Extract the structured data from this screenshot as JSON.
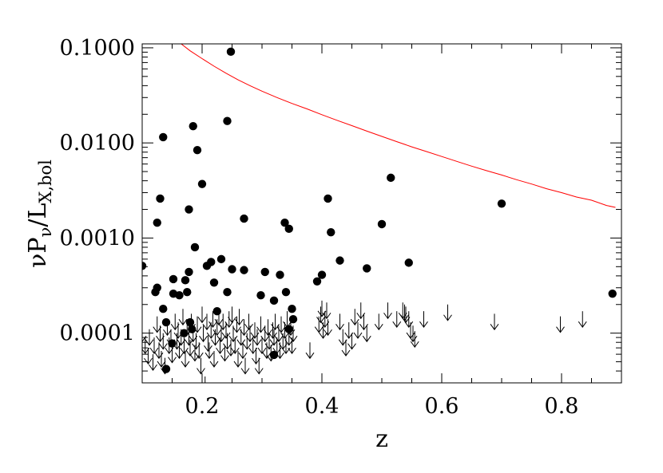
{
  "chart_data": {
    "type": "scatter",
    "title": "",
    "xlabel": "z",
    "ylabel": {
      "parts": [
        {
          "text": "ν",
          "sub": false
        },
        {
          "text": "P",
          "sub": false
        },
        {
          "text": "ν",
          "sub": true
        },
        {
          "text": "/",
          "sub": false
        },
        {
          "text": "L",
          "sub": false
        },
        {
          "text": "X,bol",
          "sub": true
        }
      ]
    },
    "xlim": [
      0.1,
      0.9
    ],
    "ylim": [
      3e-05,
      0.11
    ],
    "yscale": "log",
    "grid": false,
    "x_ticks": [
      {
        "value": 0.2,
        "label": "0.2"
      },
      {
        "value": 0.4,
        "label": "0.4"
      },
      {
        "value": 0.6,
        "label": "0.6"
      },
      {
        "value": 0.8,
        "label": "0.8"
      }
    ],
    "x_minor_step": 0.05,
    "y_ticks": [
      {
        "value": 0.0001,
        "label": "0.0001"
      },
      {
        "value": 0.001,
        "label": "0.0010"
      },
      {
        "value": 0.01,
        "label": "0.0100"
      },
      {
        "value": 0.1,
        "label": "0.1000"
      }
    ],
    "series": [
      {
        "kind": "points",
        "color": "#000000",
        "points": [
          [
            0.1,
            0.00051
          ],
          [
            0.122,
            0.00027
          ],
          [
            0.125,
            0.0003
          ],
          [
            0.135,
            0.00018
          ],
          [
            0.14,
            0.00013
          ],
          [
            0.14,
            4.2e-05
          ],
          [
            0.15,
            7.8e-05
          ],
          [
            0.152,
            0.00026
          ],
          [
            0.152,
            0.00037
          ],
          [
            0.162,
            0.00025
          ],
          [
            0.17,
            0.0001
          ],
          [
            0.172,
            0.00036
          ],
          [
            0.175,
            0.00027
          ],
          [
            0.178,
            0.00044
          ],
          [
            0.18,
            0.00013
          ],
          [
            0.183,
            0.00011
          ],
          [
            0.188,
            0.0008
          ],
          [
            0.208,
            0.00051
          ],
          [
            0.215,
            0.00056
          ],
          [
            0.22,
            0.00034
          ],
          [
            0.225,
            0.00017
          ],
          [
            0.232,
            0.0006
          ],
          [
            0.242,
            0.00027
          ],
          [
            0.25,
            0.00047
          ],
          [
            0.27,
            0.00046
          ],
          [
            0.298,
            0.00025
          ],
          [
            0.305,
            0.00044
          ],
          [
            0.32,
            5.9e-05
          ],
          [
            0.32,
            0.00022
          ],
          [
            0.33,
            0.00041
          ],
          [
            0.34,
            0.00027
          ],
          [
            0.345,
            0.00011
          ],
          [
            0.35,
            0.00018
          ],
          [
            0.352,
            0.00014
          ],
          [
            0.392,
            0.00035
          ],
          [
            0.4,
            0.00041
          ],
          [
            0.43,
            0.00058
          ],
          [
            0.475,
            0.00048
          ],
          [
            0.545,
            0.00055
          ],
          [
            0.885,
            0.00026
          ],
          [
            0.125,
            0.00145
          ],
          [
            0.13,
            0.0026
          ],
          [
            0.135,
            0.0115
          ],
          [
            0.178,
            0.002
          ],
          [
            0.185,
            0.015
          ],
          [
            0.192,
            0.0084
          ],
          [
            0.2,
            0.0037
          ],
          [
            0.242,
            0.017
          ],
          [
            0.248,
            0.091
          ],
          [
            0.27,
            0.0016
          ],
          [
            0.338,
            0.00145
          ],
          [
            0.345,
            0.00125
          ],
          [
            0.41,
            0.0026
          ],
          [
            0.415,
            0.00115
          ],
          [
            0.5,
            0.0014
          ],
          [
            0.515,
            0.0043
          ],
          [
            0.7,
            0.0023
          ]
        ]
      },
      {
        "kind": "upper_limits",
        "color": "#000000",
        "points": [
          [
            0.1,
            0.00012
          ],
          [
            0.105,
            9e-05
          ],
          [
            0.11,
            7e-05
          ],
          [
            0.112,
            0.00011
          ],
          [
            0.118,
            6e-05
          ],
          [
            0.12,
            9e-05
          ],
          [
            0.125,
            0.00015
          ],
          [
            0.128,
            8e-05
          ],
          [
            0.13,
            0.00012
          ],
          [
            0.132,
            6.5e-05
          ],
          [
            0.135,
            0.0001
          ],
          [
            0.138,
            5.5e-05
          ],
          [
            0.142,
            0.00014
          ],
          [
            0.145,
            9e-05
          ],
          [
            0.148,
            0.00011
          ],
          [
            0.15,
            7.2e-05
          ],
          [
            0.155,
            0.00016
          ],
          [
            0.158,
            0.0001
          ],
          [
            0.16,
            0.00013
          ],
          [
            0.162,
            8e-05
          ],
          [
            0.165,
            0.00011
          ],
          [
            0.168,
            0.00018
          ],
          [
            0.17,
            9e-05
          ],
          [
            0.172,
            6.5e-05
          ],
          [
            0.175,
            0.00014
          ],
          [
            0.178,
            0.00011
          ],
          [
            0.18,
            8.5e-05
          ],
          [
            0.182,
            0.00016
          ],
          [
            0.185,
            0.00012
          ],
          [
            0.188,
            7.5e-05
          ],
          [
            0.19,
            0.0001
          ],
          [
            0.192,
            0.00015
          ],
          [
            0.195,
            8e-05
          ],
          [
            0.198,
            5.5e-05
          ],
          [
            0.2,
            0.00019
          ],
          [
            0.202,
            0.00012
          ],
          [
            0.205,
            3.5e-05
          ],
          [
            0.208,
            0.00016
          ],
          [
            0.21,
            9.5e-05
          ],
          [
            0.212,
            8e-05
          ],
          [
            0.215,
            0.00013
          ],
          [
            0.218,
            0.00017
          ],
          [
            0.22,
            6.5e-05
          ],
          [
            0.222,
            0.00011
          ],
          [
            0.225,
            0.00014
          ],
          [
            0.228,
            0.00018
          ],
          [
            0.23,
            9e-05
          ],
          [
            0.232,
            0.00012
          ],
          [
            0.235,
            0.00016
          ],
          [
            0.238,
            7.5e-05
          ],
          [
            0.24,
            0.00013
          ],
          [
            0.242,
            0.0001
          ],
          [
            0.245,
            0.00017
          ],
          [
            0.248,
            8.5e-05
          ],
          [
            0.25,
            0.00019
          ],
          [
            0.252,
            0.00012
          ],
          [
            0.255,
            9e-05
          ],
          [
            0.258,
            0.00015
          ],
          [
            0.26,
            6.5e-05
          ],
          [
            0.262,
            0.00018
          ],
          [
            0.265,
            0.00011
          ],
          [
            0.268,
            8e-05
          ],
          [
            0.27,
            0.00014
          ],
          [
            0.272,
            5.5e-05
          ],
          [
            0.275,
            0.0001
          ],
          [
            0.278,
            0.00016
          ],
          [
            0.28,
            0.00012
          ],
          [
            0.285,
            9e-05
          ],
          [
            0.288,
            0.00013
          ],
          [
            0.29,
            7e-05
          ],
          [
            0.292,
            0.00011
          ],
          [
            0.295,
            5.5e-05
          ],
          [
            0.298,
            0.00015
          ],
          [
            0.3,
            9e-05
          ],
          [
            0.305,
            0.00012
          ],
          [
            0.308,
            8e-05
          ],
          [
            0.31,
            0.00014
          ],
          [
            0.312,
            0.0001
          ],
          [
            0.315,
            7.5e-05
          ],
          [
            0.318,
            0.00013
          ],
          [
            0.32,
            0.00011
          ],
          [
            0.322,
            0.00016
          ],
          [
            0.325,
            9e-05
          ],
          [
            0.328,
            0.00012
          ],
          [
            0.33,
            8e-05
          ],
          [
            0.332,
            0.00015
          ],
          [
            0.335,
            0.0001
          ],
          [
            0.338,
            0.00013
          ],
          [
            0.34,
            9e-05
          ],
          [
            0.342,
            0.00017
          ],
          [
            0.345,
            0.00011
          ],
          [
            0.348,
            0.00014
          ],
          [
            0.35,
            9e-05
          ],
          [
            0.352,
            0.00012
          ],
          [
            0.38,
            8e-05
          ],
          [
            0.395,
            0.00015
          ],
          [
            0.398,
            0.00019
          ],
          [
            0.4,
            0.00022
          ],
          [
            0.402,
            0.00013
          ],
          [
            0.405,
            0.00017
          ],
          [
            0.408,
            0.00021
          ],
          [
            0.41,
            0.00014
          ],
          [
            0.43,
            0.00016
          ],
          [
            0.435,
            0.00011
          ],
          [
            0.44,
            8.5e-05
          ],
          [
            0.445,
            0.00013
          ],
          [
            0.45,
            0.0001
          ],
          [
            0.455,
            0.00018
          ],
          [
            0.46,
            0.00013
          ],
          [
            0.465,
            0.00021
          ],
          [
            0.47,
            0.00016
          ],
          [
            0.475,
            0.00012
          ],
          [
            0.495,
            0.00016
          ],
          [
            0.51,
            0.00021
          ],
          [
            0.525,
            0.00017
          ],
          [
            0.535,
            0.00021
          ],
          [
            0.538,
            0.0002
          ],
          [
            0.54,
            0.00019
          ],
          [
            0.545,
            0.00017
          ],
          [
            0.548,
            0.00013
          ],
          [
            0.552,
            0.00012
          ],
          [
            0.555,
            0.000105
          ],
          [
            0.57,
            0.00017
          ],
          [
            0.61,
            0.0002
          ],
          [
            0.688,
            0.00016
          ],
          [
            0.798,
            0.00015
          ],
          [
            0.835,
            0.00017
          ]
        ]
      },
      {
        "kind": "line",
        "color": "#ff0000",
        "points": [
          [
            0.165,
            0.11
          ],
          [
            0.18,
            0.093
          ],
          [
            0.2,
            0.077
          ],
          [
            0.22,
            0.064
          ],
          [
            0.24,
            0.054
          ],
          [
            0.26,
            0.046
          ],
          [
            0.28,
            0.04
          ],
          [
            0.3,
            0.035
          ],
          [
            0.325,
            0.03
          ],
          [
            0.35,
            0.026
          ],
          [
            0.375,
            0.0228
          ],
          [
            0.4,
            0.0198
          ],
          [
            0.425,
            0.0173
          ],
          [
            0.45,
            0.0152
          ],
          [
            0.475,
            0.0133
          ],
          [
            0.5,
            0.0117
          ],
          [
            0.525,
            0.0103
          ],
          [
            0.55,
            0.0091
          ],
          [
            0.575,
            0.0081
          ],
          [
            0.6,
            0.0072
          ],
          [
            0.625,
            0.0064
          ],
          [
            0.65,
            0.0057
          ],
          [
            0.675,
            0.0051
          ],
          [
            0.7,
            0.0046
          ],
          [
            0.725,
            0.0041
          ],
          [
            0.75,
            0.0037
          ],
          [
            0.775,
            0.0033
          ],
          [
            0.8,
            0.003
          ],
          [
            0.825,
            0.0027
          ],
          [
            0.85,
            0.0025
          ],
          [
            0.875,
            0.0022
          ],
          [
            0.89,
            0.0021
          ]
        ]
      }
    ]
  }
}
